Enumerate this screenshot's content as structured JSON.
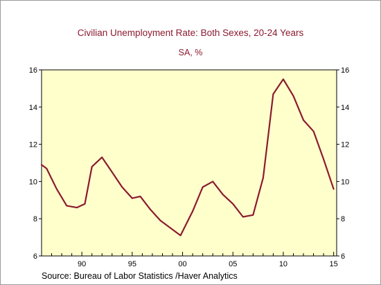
{
  "chart_data": {
    "type": "line",
    "title": "Civilian Unemployment Rate: Both Sexes, 20-24 Years",
    "subtitle": "SA, %",
    "source": "Source:  Bureau of Labor Statistics /Haver Analytics",
    "xlabel": "",
    "ylabel": "",
    "xlim": [
      1986,
      2015.3
    ],
    "ylim": [
      6,
      16
    ],
    "y_ticks": [
      6,
      8,
      10,
      12,
      14,
      16
    ],
    "x_ticks": [
      {
        "value": 1990,
        "label": "90"
      },
      {
        "value": 1995,
        "label": "95"
      },
      {
        "value": 2000,
        "label": "00"
      },
      {
        "value": 2005,
        "label": "05"
      },
      {
        "value": 2010,
        "label": "10"
      },
      {
        "value": 2015,
        "label": "15"
      }
    ],
    "grid": false,
    "background_color": "#ffffcc",
    "line_color": "#8b1a2e",
    "series": [
      {
        "x": [
          1986,
          1986.5,
          1987.5,
          1988.5,
          1989.5,
          1990.3,
          1991,
          1992,
          1993,
          1994,
          1995,
          1995.8,
          1996.8,
          1997.8,
          1998.8,
          1999.8,
          2001,
          2002,
          2003,
          2004,
          2005,
          2006,
          2007,
          2008,
          2009,
          2010,
          2011,
          2012,
          2013,
          2014,
          2015
        ],
        "y": [
          10.9,
          10.7,
          9.6,
          8.7,
          8.6,
          8.8,
          10.8,
          11.3,
          10.5,
          9.7,
          9.1,
          9.2,
          8.5,
          7.9,
          7.5,
          7.1,
          8.4,
          9.7,
          10.0,
          9.3,
          8.8,
          8.1,
          8.2,
          10.2,
          14.7,
          15.5,
          14.6,
          13.3,
          12.7,
          11.2,
          9.6
        ]
      }
    ]
  }
}
